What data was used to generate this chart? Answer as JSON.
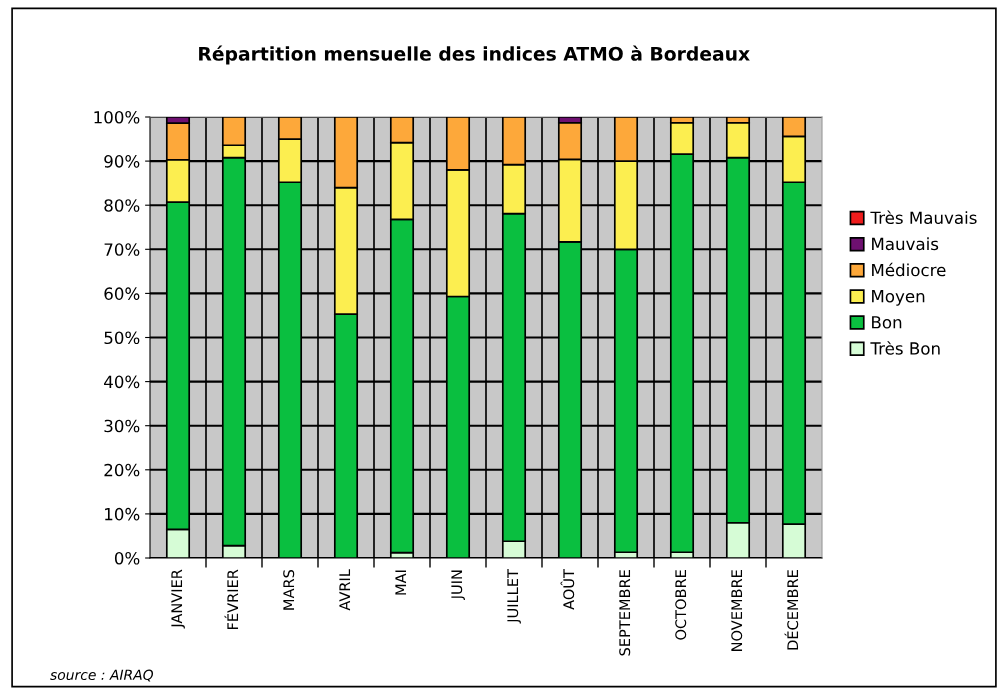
{
  "chart_data": {
    "type": "bar",
    "stacked": true,
    "title": "Répartition mensuelle des indices ATMO à Bordeaux",
    "categories": [
      "JANVIER",
      "FÉVRIER",
      "MARS",
      "AVRIL",
      "MAI",
      "JUIN",
      "JUILLET",
      "AOÛT",
      "SEPTEMBRE",
      "OCTOBRE",
      "NOVEMBRE",
      "DÉCEMBRE"
    ],
    "series": [
      {
        "name": "Très Bon",
        "color": "#d6fcd6",
        "values": [
          6.5,
          2.8,
          0,
          0,
          1.2,
          0,
          3.8,
          0,
          1.3,
          1.3,
          8.0,
          7.7
        ]
      },
      {
        "name": "Bon",
        "color": "#0abf40",
        "values": [
          74.2,
          88.0,
          85.2,
          55.3,
          75.6,
          59.3,
          74.3,
          71.7,
          68.7,
          90.3,
          82.8,
          77.5
        ]
      },
      {
        "name": "Moyen",
        "color": "#fcee50",
        "values": [
          9.6,
          2.8,
          9.8,
          28.7,
          17.4,
          28.7,
          11.1,
          18.7,
          20.0,
          7.1,
          7.9,
          10.4
        ]
      },
      {
        "name": "Médiocre",
        "color": "#fda83a",
        "values": [
          8.3,
          6.4,
          5.0,
          16.0,
          5.8,
          12.0,
          10.8,
          8.3,
          10.0,
          1.3,
          1.3,
          4.4
        ]
      },
      {
        "name": "Mauvais",
        "color": "#6e1070",
        "values": [
          1.4,
          0,
          0,
          0,
          0,
          0,
          0,
          1.3,
          0,
          0,
          0,
          0
        ]
      },
      {
        "name": "Très Mauvais",
        "color": "#ee1c1c",
        "values": [
          0,
          0,
          0,
          0,
          0,
          0,
          0,
          0,
          0,
          0,
          0,
          0
        ]
      }
    ],
    "ylim": [
      0,
      100
    ],
    "yticks": [
      {
        "value": 0,
        "label": "0%"
      },
      {
        "value": 10,
        "label": "10%"
      },
      {
        "value": 20,
        "label": "20%"
      },
      {
        "value": 30,
        "label": "30%"
      },
      {
        "value": 40,
        "label": "40%"
      },
      {
        "value": 50,
        "label": "50%"
      },
      {
        "value": 60,
        "label": "60%"
      },
      {
        "value": 70,
        "label": "70%"
      },
      {
        "value": 80,
        "label": "80%"
      },
      {
        "value": 90,
        "label": "90%"
      },
      {
        "value": 100,
        "label": "100%"
      }
    ],
    "grid": true,
    "legend": "right",
    "annotations": [
      "source : AIRAQ"
    ]
  }
}
